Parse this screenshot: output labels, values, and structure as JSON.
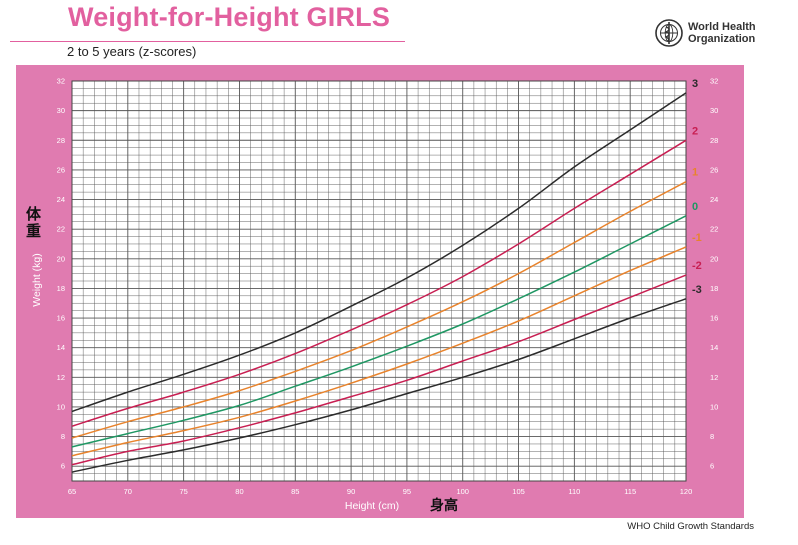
{
  "header": {
    "title": "Weight-for-Height GIRLS",
    "subtitle": "2 to 5 years (z-scores)",
    "org_line1": "World Health",
    "org_line2": "Organization"
  },
  "footer": {
    "text": "WHO Child Growth Standards"
  },
  "colors": {
    "frame": "#e07bb0",
    "grid": "#555555",
    "title": "#e2609f",
    "z3": "#2b2b2b",
    "z2": "#c81f52",
    "z1": "#e8832c",
    "z0": "#1f9763",
    "zm1": "#e8832c",
    "zm2": "#c81f52",
    "zm3": "#2b2b2b"
  },
  "chart_data": {
    "type": "line",
    "title": "Weight-for-Height GIRLS",
    "subtitle": "2 to 5 years (z-scores)",
    "xlabel": "Height (cm)",
    "xlabel_cn": "身高",
    "ylabel": "Weight (kg)",
    "ylabel_cn": "体重",
    "xlim": [
      65,
      120
    ],
    "ylim": [
      5,
      32
    ],
    "x_ticks": [
      "65",
      "70",
      "75",
      "80",
      "85",
      "90",
      "95",
      "100",
      "105",
      "110",
      "115",
      "120"
    ],
    "y_ticks": [
      "6",
      "8",
      "10",
      "12",
      "14",
      "16",
      "18",
      "20",
      "22",
      "24",
      "26",
      "28",
      "30",
      "32"
    ],
    "grid": true,
    "legend": "line labels at right end",
    "x": [
      65,
      70,
      75,
      80,
      85,
      90,
      95,
      100,
      105,
      110,
      115,
      120
    ],
    "series": [
      {
        "name": "3",
        "colorKey": "z3",
        "values": [
          9.7,
          11.0,
          12.2,
          13.5,
          15.0,
          16.8,
          18.7,
          20.9,
          23.4,
          26.2,
          28.7,
          31.2
        ]
      },
      {
        "name": "2",
        "colorKey": "z2",
        "values": [
          8.7,
          9.9,
          11.0,
          12.2,
          13.6,
          15.2,
          16.9,
          18.8,
          21.0,
          23.4,
          25.7,
          28.0
        ]
      },
      {
        "name": "1",
        "colorKey": "z1",
        "values": [
          7.9,
          9.0,
          10.0,
          11.1,
          12.4,
          13.8,
          15.4,
          17.1,
          19.0,
          21.1,
          23.2,
          25.2
        ]
      },
      {
        "name": "0",
        "colorKey": "z0",
        "values": [
          7.3,
          8.2,
          9.1,
          10.1,
          11.4,
          12.7,
          14.1,
          15.6,
          17.3,
          19.1,
          21.0,
          22.9
        ]
      },
      {
        "name": "-1",
        "colorKey": "zm1",
        "values": [
          6.7,
          7.6,
          8.4,
          9.3,
          10.4,
          11.6,
          12.9,
          14.3,
          15.8,
          17.5,
          19.2,
          20.8
        ]
      },
      {
        "name": "-2",
        "colorKey": "zm2",
        "values": [
          6.1,
          7.0,
          7.7,
          8.6,
          9.6,
          10.7,
          11.8,
          13.1,
          14.4,
          15.9,
          17.4,
          18.9
        ]
      },
      {
        "name": "-3",
        "colorKey": "zm3",
        "values": [
          5.6,
          6.4,
          7.1,
          7.9,
          8.8,
          9.8,
          10.9,
          12.0,
          13.2,
          14.6,
          16.0,
          17.3
        ]
      }
    ]
  }
}
